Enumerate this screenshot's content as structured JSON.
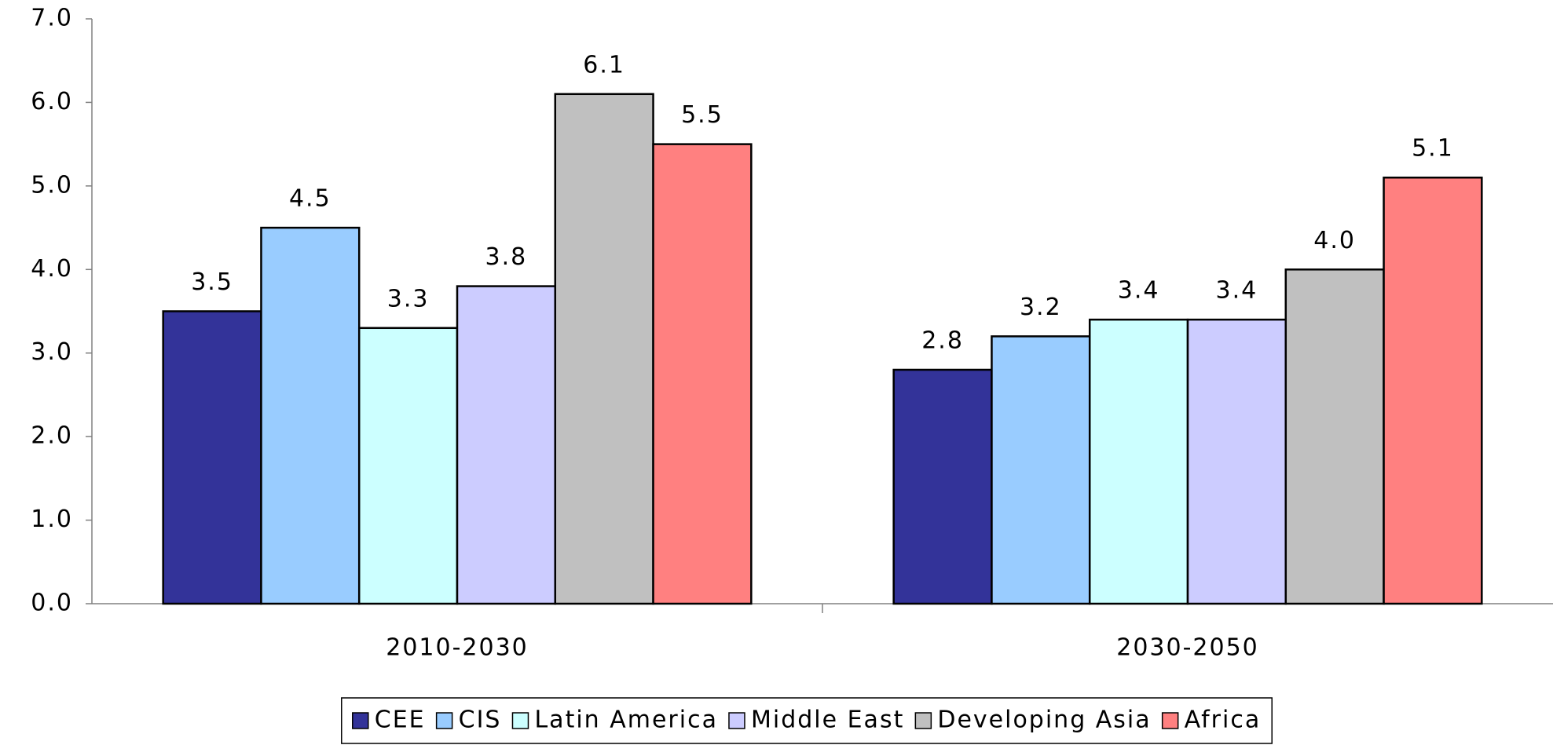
{
  "chart_data": {
    "type": "bar",
    "categories": [
      "2010-2030",
      "2030-2050"
    ],
    "series": [
      {
        "name": "CEE",
        "color": "#333399",
        "values": [
          3.5,
          2.8
        ],
        "value_labels": [
          "3.5",
          "2.8"
        ]
      },
      {
        "name": "CIS",
        "color": "#99ccff",
        "values": [
          4.5,
          3.2
        ],
        "value_labels": [
          "4.5",
          "3.2"
        ]
      },
      {
        "name": "Latin America",
        "color": "#ccffff",
        "values": [
          3.3,
          3.4
        ],
        "value_labels": [
          "3.3",
          "3.4"
        ]
      },
      {
        "name": "Middle East",
        "color": "#ccccff",
        "values": [
          3.8,
          3.4
        ],
        "value_labels": [
          "3.8",
          "3.4"
        ]
      },
      {
        "name": "Developing Asia",
        "color": "#c0c0c0",
        "values": [
          6.1,
          4.0
        ],
        "value_labels": [
          "6.1",
          "4.0"
        ]
      },
      {
        "name": "Africa",
        "color": "#ff8080",
        "values": [
          5.5,
          5.1
        ],
        "value_labels": [
          "5.5",
          "5.1"
        ]
      }
    ],
    "ylim": [
      0,
      7
    ],
    "yticks": [
      {
        "value": 0,
        "label": "0.0"
      },
      {
        "value": 1,
        "label": "1.0"
      },
      {
        "value": 2,
        "label": "2.0"
      },
      {
        "value": 3,
        "label": "3.0"
      },
      {
        "value": 4,
        "label": "4.0"
      },
      {
        "value": 5,
        "label": "5.0"
      },
      {
        "value": 6,
        "label": "6.0"
      },
      {
        "value": 7,
        "label": "7.0"
      }
    ],
    "legend": "bottom"
  }
}
